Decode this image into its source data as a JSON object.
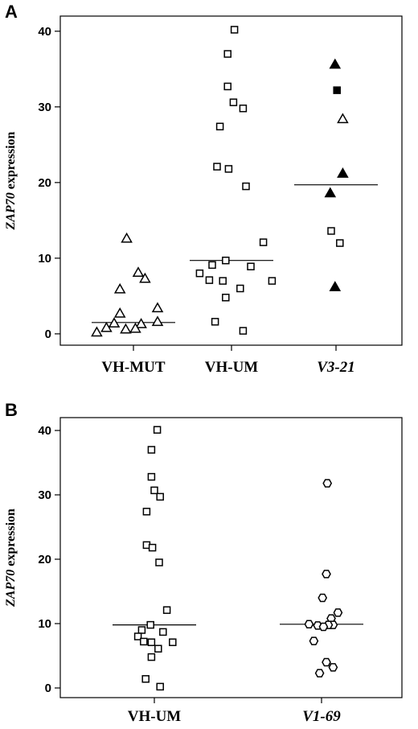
{
  "chart_data": [
    {
      "panel": "A",
      "type": "scatter",
      "ylabel_italic": "ZAP70",
      "ylabel_rest": " expression",
      "ylim": [
        -1.5,
        42
      ],
      "yticks": [
        0,
        10,
        20,
        30,
        40
      ],
      "categories": [
        {
          "label": "VH-MUT",
          "italic": false
        },
        {
          "label": "VH-UM",
          "italic": false
        },
        {
          "label": "V3-21",
          "italic": true
        }
      ],
      "series": [
        {
          "category": "VH-MUT",
          "marker": "triangle-open",
          "median": 1.5,
          "points": [
            {
              "dx": -0.07,
              "y": 12.6
            },
            {
              "dx": 0.05,
              "y": 8.1
            },
            {
              "dx": 0.12,
              "y": 7.3
            },
            {
              "dx": -0.14,
              "y": 5.9
            },
            {
              "dx": 0.25,
              "y": 3.4
            },
            {
              "dx": -0.14,
              "y": 2.7
            },
            {
              "dx": 0.25,
              "y": 1.6
            },
            {
              "dx": -0.2,
              "y": 1.4
            },
            {
              "dx": 0.08,
              "y": 1.3
            },
            {
              "dx": -0.28,
              "y": 0.8
            },
            {
              "dx": -0.08,
              "y": 0.6
            },
            {
              "dx": 0.02,
              "y": 0.7
            },
            {
              "dx": -0.38,
              "y": 0.2
            }
          ]
        },
        {
          "category": "VH-UM",
          "marker": "square-open",
          "median": 9.7,
          "points": [
            {
              "dx": 0.03,
              "y": 40.2
            },
            {
              "dx": -0.04,
              "y": 37.0
            },
            {
              "dx": -0.04,
              "y": 32.7
            },
            {
              "dx": 0.02,
              "y": 30.6
            },
            {
              "dx": 0.12,
              "y": 29.8
            },
            {
              "dx": -0.12,
              "y": 27.4
            },
            {
              "dx": -0.15,
              "y": 22.1
            },
            {
              "dx": -0.03,
              "y": 21.8
            },
            {
              "dx": 0.15,
              "y": 19.5
            },
            {
              "dx": 0.33,
              "y": 12.1
            },
            {
              "dx": -0.06,
              "y": 9.7
            },
            {
              "dx": -0.2,
              "y": 9.1
            },
            {
              "dx": 0.2,
              "y": 8.9
            },
            {
              "dx": -0.33,
              "y": 8.0
            },
            {
              "dx": -0.23,
              "y": 7.1
            },
            {
              "dx": -0.09,
              "y": 7.0
            },
            {
              "dx": 0.42,
              "y": 7.0
            },
            {
              "dx": 0.09,
              "y": 6.0
            },
            {
              "dx": -0.06,
              "y": 4.8
            },
            {
              "dx": -0.17,
              "y": 1.6
            },
            {
              "dx": 0.12,
              "y": 0.4
            }
          ]
        },
        {
          "category": "V3-21",
          "marker": "mixed",
          "median": 19.7,
          "points": [
            {
              "dx": -0.01,
              "y": 35.6,
              "marker": "triangle-filled"
            },
            {
              "dx": 0.01,
              "y": 32.2,
              "marker": "square-filled"
            },
            {
              "dx": 0.07,
              "y": 28.4,
              "marker": "triangle-open"
            },
            {
              "dx": 0.07,
              "y": 21.2,
              "marker": "triangle-filled"
            },
            {
              "dx": -0.06,
              "y": 18.6,
              "marker": "triangle-filled"
            },
            {
              "dx": -0.05,
              "y": 13.6,
              "marker": "square-open"
            },
            {
              "dx": 0.04,
              "y": 12.0,
              "marker": "square-open"
            },
            {
              "dx": -0.01,
              "y": 6.2,
              "marker": "triangle-filled"
            }
          ]
        }
      ]
    },
    {
      "panel": "B",
      "type": "scatter",
      "ylabel_italic": "ZAP70",
      "ylabel_rest": " expression",
      "ylim": [
        -1.5,
        42
      ],
      "yticks": [
        0,
        10,
        20,
        30,
        40
      ],
      "categories": [
        {
          "label": "VH-UM",
          "italic": false
        },
        {
          "label": "V1-69",
          "italic": true
        }
      ],
      "series": [
        {
          "category": "VH-UM",
          "marker": "square-open",
          "median": 9.8,
          "points": [
            {
              "dx": 0.03,
              "y": 40.1
            },
            {
              "dx": -0.03,
              "y": 37.0
            },
            {
              "dx": -0.03,
              "y": 32.8
            },
            {
              "dx": 0.0,
              "y": 30.7
            },
            {
              "dx": 0.06,
              "y": 29.7
            },
            {
              "dx": -0.08,
              "y": 27.4
            },
            {
              "dx": -0.08,
              "y": 22.2
            },
            {
              "dx": -0.02,
              "y": 21.8
            },
            {
              "dx": 0.05,
              "y": 19.5
            },
            {
              "dx": 0.13,
              "y": 12.1
            },
            {
              "dx": -0.04,
              "y": 9.8
            },
            {
              "dx": -0.13,
              "y": 9.0
            },
            {
              "dx": 0.09,
              "y": 8.7
            },
            {
              "dx": -0.17,
              "y": 8.0
            },
            {
              "dx": -0.11,
              "y": 7.2
            },
            {
              "dx": -0.03,
              "y": 7.1
            },
            {
              "dx": 0.19,
              "y": 7.1
            },
            {
              "dx": 0.04,
              "y": 6.1
            },
            {
              "dx": -0.03,
              "y": 4.8
            },
            {
              "dx": -0.09,
              "y": 1.4
            },
            {
              "dx": 0.06,
              "y": 0.2
            }
          ]
        },
        {
          "category": "V1-69",
          "marker": "diamond-open",
          "median": 9.9,
          "points": [
            {
              "dx": 0.06,
              "y": 31.8
            },
            {
              "dx": 0.05,
              "y": 17.7
            },
            {
              "dx": 0.01,
              "y": 14.0
            },
            {
              "dx": 0.17,
              "y": 11.7
            },
            {
              "dx": 0.1,
              "y": 10.8
            },
            {
              "dx": -0.13,
              "y": 9.9
            },
            {
              "dx": 0.12,
              "y": 9.8
            },
            {
              "dx": 0.07,
              "y": 9.8
            },
            {
              "dx": -0.04,
              "y": 9.7
            },
            {
              "dx": 0.02,
              "y": 9.5
            },
            {
              "dx": -0.08,
              "y": 7.3
            },
            {
              "dx": 0.05,
              "y": 4.0
            },
            {
              "dx": 0.12,
              "y": 3.2
            },
            {
              "dx": -0.02,
              "y": 2.3
            }
          ]
        }
      ]
    }
  ]
}
